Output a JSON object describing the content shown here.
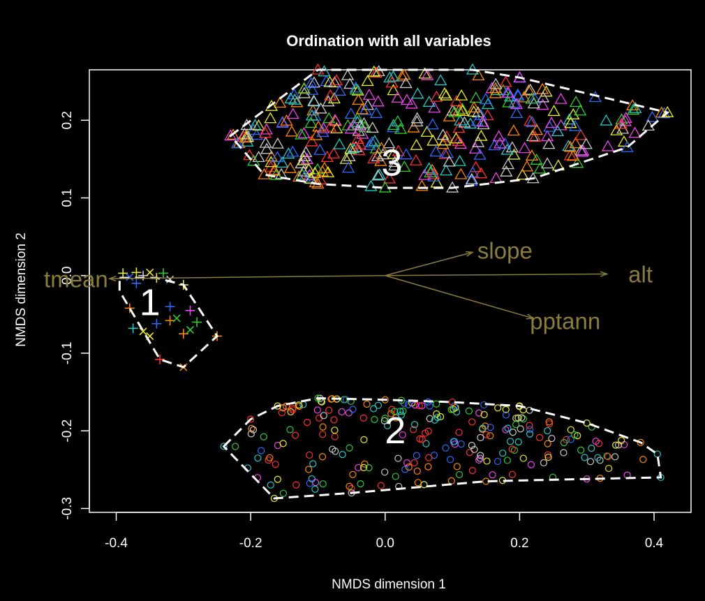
{
  "chart_data": {
    "type": "scatter",
    "title": "Ordination with all variables",
    "xlabel": "NMDS dimension 1",
    "ylabel": "NMDS dimension 2",
    "xlim": [
      -0.44,
      0.455
    ],
    "ylim": [
      -0.305,
      0.265
    ],
    "xticks": [
      "-0.4",
      "-0.2",
      "0.0",
      "0.2",
      "0.4"
    ],
    "xtick_values": [
      -0.4,
      -0.2,
      0.0,
      0.2,
      0.4
    ],
    "yticks": [
      "-0.3",
      "-0.2",
      "-0.1",
      "0.0",
      "0.1",
      "0.2"
    ],
    "ytick_values": [
      -0.3,
      -0.2,
      -0.1,
      0.0,
      0.1,
      0.2
    ],
    "grid": false,
    "colors": {
      "background": "#000000",
      "axis": "#ffffff",
      "hull": "#ffffff",
      "vector": "#8b7d3c",
      "palette": [
        "#ff3030",
        "#33cc33",
        "#2b6cff",
        "#22cccc",
        "#ee44ee",
        "#eeee22",
        "#ff8800",
        "#cccccc"
      ]
    },
    "vectors": [
      {
        "name": "alt",
        "x": 0.33,
        "y": 0.002
      },
      {
        "name": "slope",
        "x": 0.13,
        "y": 0.03
      },
      {
        "name": "pptann",
        "x": 0.22,
        "y": -0.055
      },
      {
        "name": "tmean",
        "x": -0.41,
        "y": -0.004
      }
    ],
    "groups": [
      {
        "name": "1",
        "marker": "cross",
        "label_pos": {
          "x": -0.35,
          "y": -0.035
        },
        "hull": [
          [
            -0.395,
            -0.003
          ],
          [
            -0.34,
            -0.003
          ],
          [
            -0.3,
            -0.012
          ],
          [
            -0.25,
            -0.078
          ],
          [
            -0.3,
            -0.118
          ],
          [
            -0.335,
            -0.108
          ],
          [
            -0.395,
            -0.02
          ]
        ],
        "points": [
          [
            -0.39,
            0.003
          ],
          [
            -0.38,
            -0.002
          ],
          [
            -0.37,
            0.004
          ],
          [
            -0.36,
            0.0
          ],
          [
            -0.35,
            0.004
          ],
          [
            -0.34,
            -0.003
          ],
          [
            -0.33,
            0.003
          ],
          [
            -0.32,
            -0.005
          ],
          [
            -0.3,
            -0.012
          ],
          [
            -0.38,
            -0.042
          ],
          [
            -0.36,
            -0.072
          ],
          [
            -0.34,
            -0.062
          ],
          [
            -0.32,
            -0.058
          ],
          [
            -0.31,
            -0.055
          ],
          [
            -0.29,
            -0.045
          ],
          [
            -0.28,
            -0.06
          ],
          [
            -0.29,
            -0.07
          ],
          [
            -0.3,
            -0.075
          ],
          [
            -0.25,
            -0.078
          ],
          [
            -0.3,
            -0.118
          ],
          [
            -0.335,
            -0.108
          ],
          [
            -0.375,
            -0.068
          ],
          [
            -0.35,
            -0.078
          ],
          [
            -0.32,
            -0.04
          ],
          [
            -0.37,
            -0.01
          ]
        ]
      },
      {
        "name": "2",
        "marker": "circle",
        "label_pos": {
          "x": 0.015,
          "y": -0.2
        },
        "hull": [
          [
            -0.24,
            -0.22
          ],
          [
            -0.2,
            -0.185
          ],
          [
            -0.16,
            -0.168
          ],
          [
            -0.1,
            -0.158
          ],
          [
            0.0,
            -0.16
          ],
          [
            0.1,
            -0.163
          ],
          [
            0.2,
            -0.168
          ],
          [
            0.3,
            -0.19
          ],
          [
            0.38,
            -0.215
          ],
          [
            0.405,
            -0.23
          ],
          [
            0.41,
            -0.26
          ],
          [
            0.3,
            -0.262
          ],
          [
            0.15,
            -0.265
          ],
          [
            -0.05,
            -0.28
          ],
          [
            -0.165,
            -0.287
          ]
        ]
      },
      {
        "name": "3",
        "marker": "triangle",
        "label_pos": {
          "x": 0.01,
          "y": 0.145
        },
        "hull": [
          [
            -0.23,
            0.18
          ],
          [
            -0.1,
            0.265
          ],
          [
            0.13,
            0.265
          ],
          [
            0.2,
            0.255
          ],
          [
            0.42,
            0.21
          ],
          [
            0.36,
            0.165
          ],
          [
            0.22,
            0.125
          ],
          [
            0.1,
            0.113
          ],
          [
            0.0,
            0.113
          ],
          [
            -0.1,
            0.118
          ],
          [
            -0.18,
            0.13
          ],
          [
            -0.22,
            0.17
          ]
        ]
      }
    ]
  }
}
